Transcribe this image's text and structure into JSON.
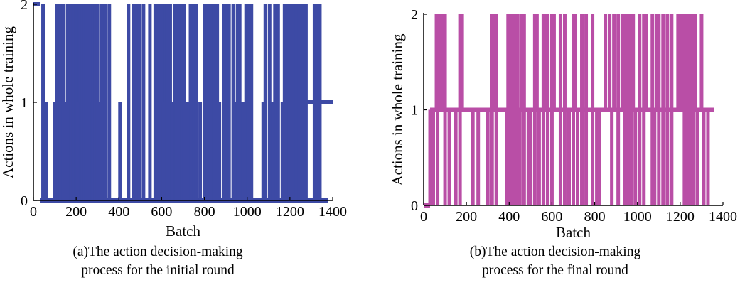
{
  "chart_data": [
    {
      "type": "line",
      "panel": "a",
      "ylabel": "Actions in whole training",
      "xlabel": "Batch",
      "xlim": [
        0,
        1400
      ],
      "ylim": [
        0,
        2
      ],
      "xticks": [
        0,
        200,
        400,
        600,
        800,
        1000,
        1200,
        1400
      ],
      "yticks": [
        0,
        1,
        2
      ],
      "grid": false,
      "color": "#3d4aa5",
      "series": [
        {
          "description": "per-batch action (0, 1 or 2); baseline is action 0 for most batches with frequent switching",
          "segments": [
            {
              "x": [
                0,
                30
              ],
              "y": 2
            },
            {
              "x": [
                30,
                1380
              ],
              "y": 0,
              "note": "baseline"
            },
            {
              "x": [
                1180,
                1400
              ],
              "y": 1,
              "note": "baseline tail"
            }
          ],
          "spikes_to_2": [
            45,
            110,
            125,
            140,
            160,
            175,
            180,
            185,
            190,
            195,
            200,
            205,
            210,
            215,
            220,
            225,
            230,
            235,
            240,
            245,
            250,
            265,
            275,
            280,
            290,
            300,
            320,
            335,
            355,
            445,
            470,
            480,
            495,
            515,
            545,
            570,
            580,
            595,
            605,
            620,
            625,
            640,
            660,
            670,
            675,
            685,
            695,
            705,
            735,
            750,
            760,
            800,
            815,
            825,
            835,
            845,
            860,
            890,
            905,
            915,
            935,
            955,
            965,
            995,
            1005,
            1020,
            1085,
            1105,
            1130,
            1145,
            1175,
            1185,
            1195,
            1205,
            1215,
            1230,
            1245,
            1260,
            1275,
            1315,
            1330,
            1340
          ],
          "spikes_to_1": [
            60,
            100,
            150,
            205,
            260,
            310,
            405,
            590,
            610,
            650,
            705,
            720,
            780,
            870,
            895,
            940,
            980,
            1075,
            1120,
            1165,
            1180
          ]
        }
      ]
    },
    {
      "type": "line",
      "panel": "b",
      "ylabel": "Actions in whole training",
      "xlabel": "Batch",
      "xlim": [
        0,
        1400
      ],
      "ylim": [
        0,
        2
      ],
      "xticks": [
        0,
        200,
        400,
        600,
        800,
        1000,
        1200,
        1400
      ],
      "yticks": [
        0,
        1,
        2
      ],
      "grid": false,
      "color": "#b94ea6",
      "series": [
        {
          "description": "per-batch action (0, 1 or 2); baseline is action 1 for most batches with frequent switching",
          "segments": [
            {
              "x": [
                0,
                30
              ],
              "y": 0
            },
            {
              "x": [
                30,
                1360
              ],
              "y": 1,
              "note": "baseline"
            }
          ],
          "spikes_to_2": [
            60,
            75,
            90,
            100,
            170,
            180,
            320,
            330,
            340,
            395,
            410,
            420,
            430,
            440,
            460,
            470,
            520,
            530,
            560,
            570,
            580,
            600,
            610,
            640,
            660,
            700,
            710,
            740,
            760,
            790,
            850,
            870,
            890,
            910,
            930,
            940,
            950,
            960,
            970,
            980,
            1010,
            1030,
            1040,
            1070,
            1090,
            1100,
            1120,
            1140,
            1160,
            1190,
            1200,
            1210,
            1220,
            1230,
            1240,
            1250,
            1260,
            1270,
            1300
          ],
          "spikes_to_0": [
            30,
            45,
            65,
            100,
            120,
            150,
            170,
            230,
            255,
            300,
            320,
            340,
            390,
            400,
            410,
            420,
            430,
            440,
            450,
            470,
            490,
            500,
            520,
            540,
            560,
            580,
            600,
            640,
            660,
            680,
            700,
            720,
            740,
            760,
            790,
            810,
            820,
            880,
            910,
            940,
            950,
            960,
            970,
            990,
            1010,
            1030,
            1070,
            1080,
            1100,
            1120,
            1140,
            1160,
            1220,
            1230,
            1240,
            1250,
            1260,
            1280,
            1310,
            1330
          ]
        }
      ]
    }
  ],
  "captions": {
    "a_line1": "(a)The action decision-making",
    "a_line2": "process for the initial round",
    "b_line1": "(b)The action decision-making",
    "b_line2": "process for the final round"
  }
}
